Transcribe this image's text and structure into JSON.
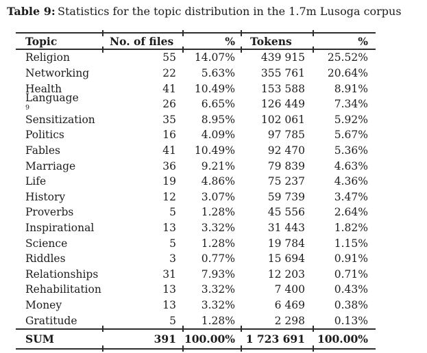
{
  "caption": {
    "label": "Table 9:",
    "text": "Statistics for the topic distribution in the 1.7m Lusoga corpus"
  },
  "table": {
    "columns": [
      {
        "label": "Topic"
      },
      {
        "label": "No. of files"
      },
      {
        "label": "%"
      },
      {
        "label": "Tokens"
      },
      {
        "label": "%"
      }
    ],
    "rows": [
      {
        "topic": "Religion",
        "files": "55",
        "files_pct": "14.07%",
        "tokens": "439 915",
        "tokens_pct": "25.52%"
      },
      {
        "topic": "Networking",
        "files": "22",
        "files_pct": "5.63%",
        "tokens": "355 761",
        "tokens_pct": "20.64%"
      },
      {
        "topic": "Health",
        "files": "41",
        "files_pct": "10.49%",
        "tokens": "153 588",
        "tokens_pct": "8.91%"
      },
      {
        "topic": "Language",
        "sup": "9",
        "files": "26",
        "files_pct": "6.65%",
        "tokens": "126 449",
        "tokens_pct": "7.34%"
      },
      {
        "topic": "Sensitization",
        "files": "35",
        "files_pct": "8.95%",
        "tokens": "102 061",
        "tokens_pct": "5.92%"
      },
      {
        "topic": "Politics",
        "files": "16",
        "files_pct": "4.09%",
        "tokens": "97 785",
        "tokens_pct": "5.67%"
      },
      {
        "topic": "Fables",
        "files": "41",
        "files_pct": "10.49%",
        "tokens": "92 470",
        "tokens_pct": "5.36%"
      },
      {
        "topic": "Marriage",
        "files": "36",
        "files_pct": "9.21%",
        "tokens": "79 839",
        "tokens_pct": "4.63%"
      },
      {
        "topic": "Life",
        "files": "19",
        "files_pct": "4.86%",
        "tokens": "75 237",
        "tokens_pct": "4.36%"
      },
      {
        "topic": "History",
        "files": "12",
        "files_pct": "3.07%",
        "tokens": "59 739",
        "tokens_pct": "3.47%"
      },
      {
        "topic": "Proverbs",
        "files": "5",
        "files_pct": "1.28%",
        "tokens": "45 556",
        "tokens_pct": "2.64%"
      },
      {
        "topic": "Inspirational",
        "files": "13",
        "files_pct": "3.32%",
        "tokens": "31 443",
        "tokens_pct": "1.82%"
      },
      {
        "topic": "Science",
        "files": "5",
        "files_pct": "1.28%",
        "tokens": "19 784",
        "tokens_pct": "1.15%"
      },
      {
        "topic": "Riddles",
        "files": "3",
        "files_pct": "0.77%",
        "tokens": "15 694",
        "tokens_pct": "0.91%"
      },
      {
        "topic": "Relationships",
        "files": "31",
        "files_pct": "7.93%",
        "tokens": "12 203",
        "tokens_pct": "0.71%"
      },
      {
        "topic": "Rehabilitation",
        "files": "13",
        "files_pct": "3.32%",
        "tokens": "7 400",
        "tokens_pct": "0.43%"
      },
      {
        "topic": "Money",
        "files": "13",
        "files_pct": "3.32%",
        "tokens": "6 469",
        "tokens_pct": "0.38%"
      },
      {
        "topic": "Gratitude",
        "files": "5",
        "files_pct": "1.28%",
        "tokens": "2 298",
        "tokens_pct": "0.13%"
      }
    ],
    "sum": {
      "topic": "SUM",
      "files": "391",
      "files_pct": "100.00%",
      "tokens": "1 723 691",
      "tokens_pct": "100.00%"
    }
  }
}
